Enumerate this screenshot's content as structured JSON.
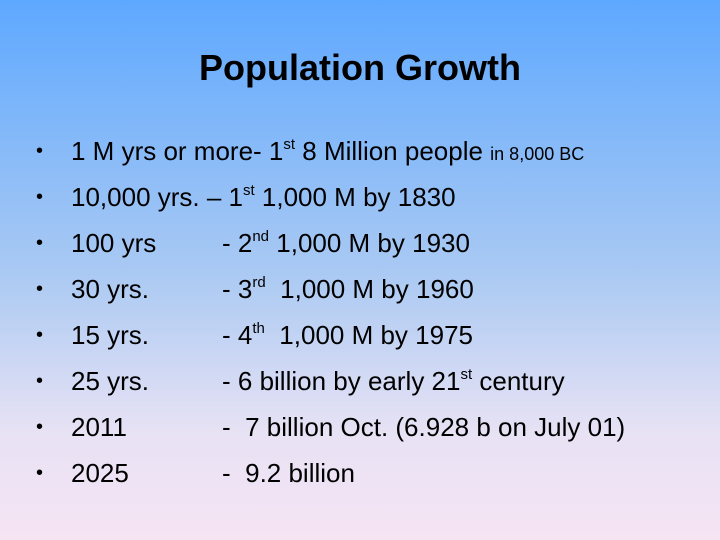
{
  "slide": {
    "title": "Population Growth",
    "bullet_glyph": "•",
    "rows": [
      {
        "a": "1 M yrs or more- 1",
        "a_sup": "st",
        "a_rest": " 8 Million people ",
        "a_small": "in 8,000 BC"
      },
      {
        "a": "10,000 yrs. – 1",
        "a_sup": "st",
        "a_rest": " 1,000 M by 1830"
      },
      {
        "c1": "100 yrs",
        "c2": "- 2",
        "c2_sup": "nd",
        "c2_rest": " 1,000 M by 1930"
      },
      {
        "c1": "30 yrs.",
        "c2": "- 3",
        "c2_sup": "rd",
        "c2_rest": "  1,000 M by 1960"
      },
      {
        "c1": "15 yrs.",
        "c2": "- 4",
        "c2_sup": "th",
        "c2_rest": "  1,000 M by 1975"
      },
      {
        "c1": "25 yrs.",
        "c2": "- 6 billion by early 21",
        "c2_sup": "st",
        "c2_rest": " century"
      },
      {
        "c1": "2011",
        "c2": "-  7 billion Oct. (6.928 b on July 01)"
      },
      {
        "c1": "2025",
        "c2": "-  9.2 billion"
      }
    ]
  }
}
